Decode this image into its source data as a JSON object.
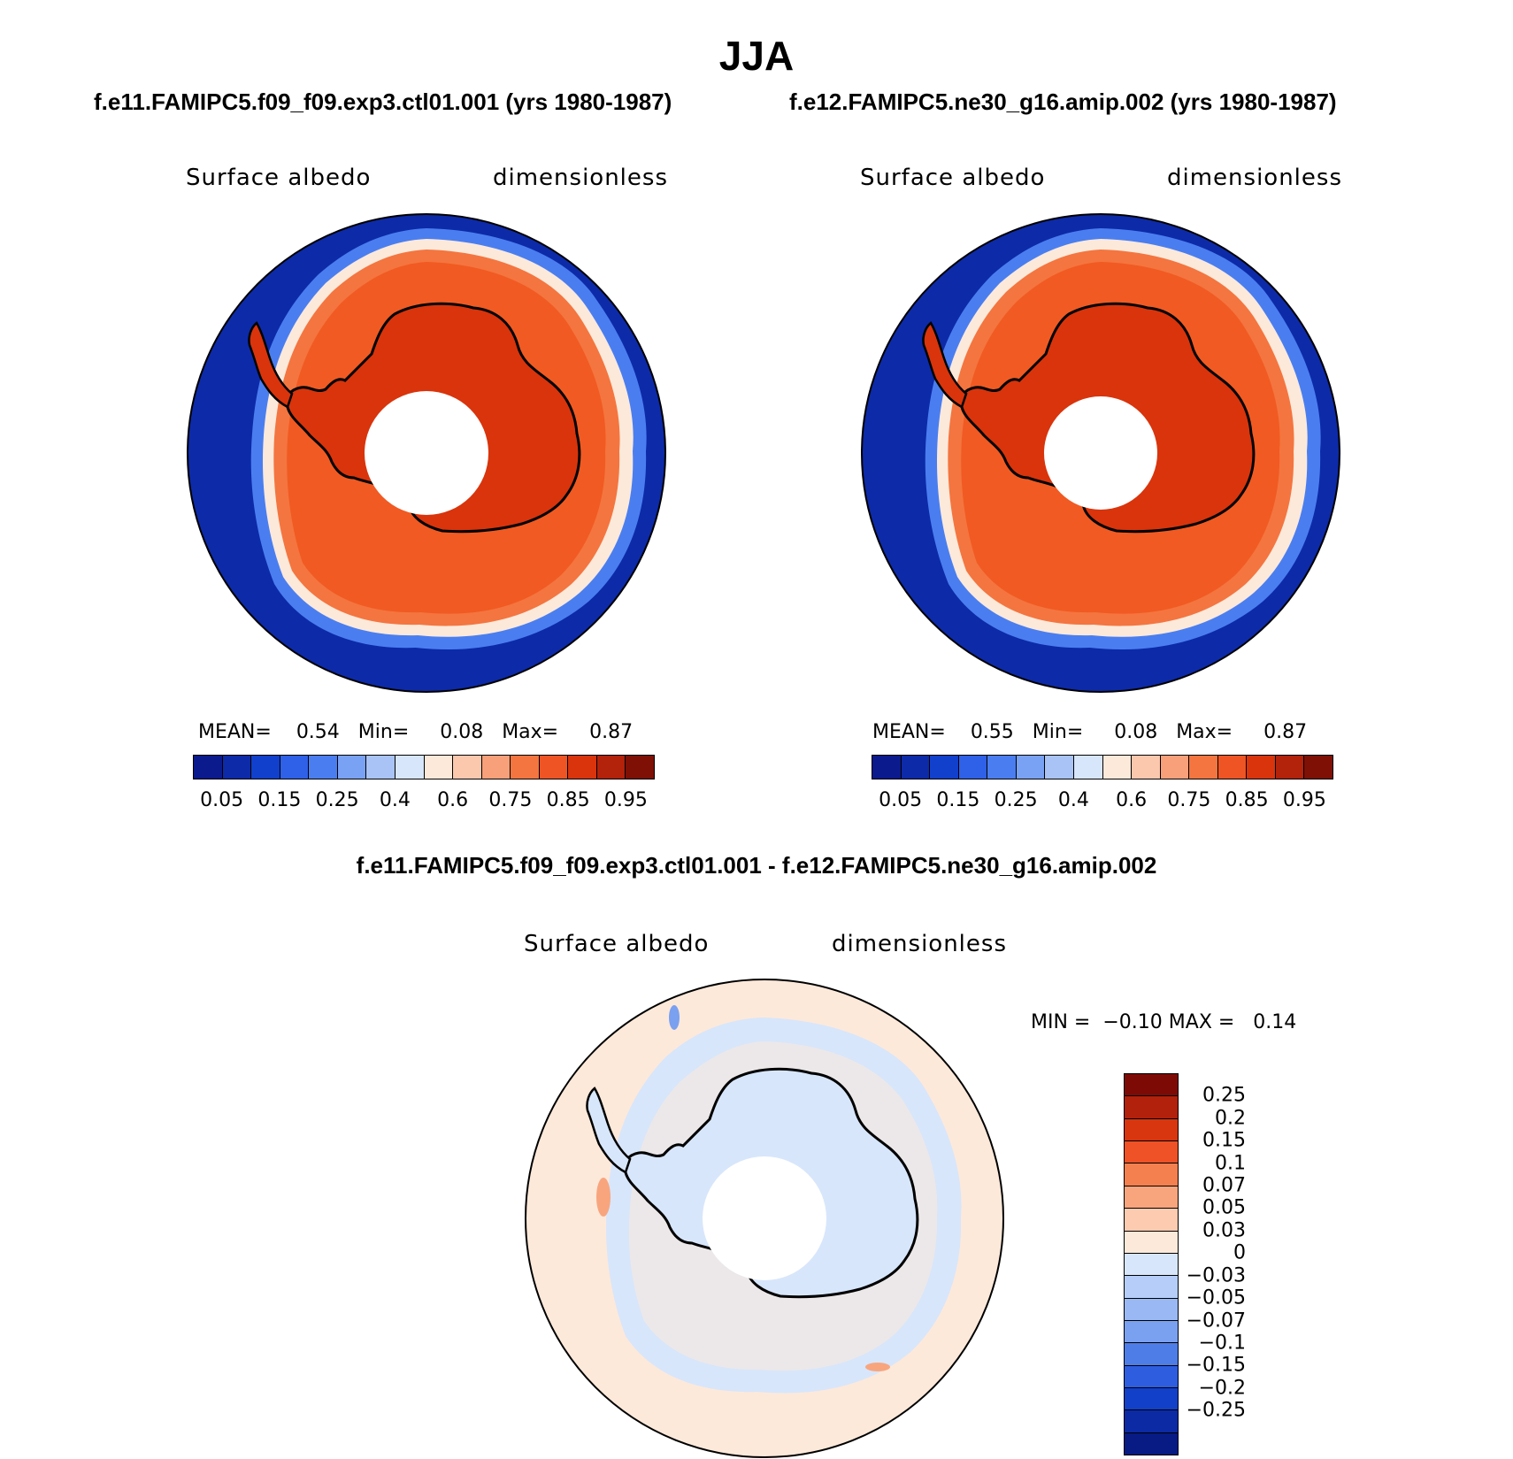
{
  "figure": {
    "title": "JJA",
    "left_case": "f.e11.FAMIPC5.f09_f09.exp3.ctl01.001 (yrs 1980-1987)",
    "right_case": "f.e12.FAMIPC5.ne30_g16.amip.002 (yrs 1980-1987)",
    "diff_case": "f.e11.FAMIPC5.f09_f09.exp3.ctl01.001 - f.e12.FAMIPC5.ne30_g16.amip.002"
  },
  "panels": {
    "left": {
      "variable": "Surface albedo",
      "units": "dimensionless",
      "mean_label": "MEAN=",
      "mean": "0.54",
      "min_label": "Min=",
      "min": "0.08",
      "max_label": "Max=",
      "max": "0.87"
    },
    "right": {
      "variable": "Surface albedo",
      "units": "dimensionless",
      "mean_label": "MEAN=",
      "mean": "0.55",
      "min_label": "Min=",
      "min": "0.08",
      "max_label": "Max=",
      "max": "0.87"
    },
    "diff": {
      "variable": "Surface albedo",
      "units": "dimensionless",
      "min_label": "MIN =",
      "min": "−0.10",
      "max_label": "MAX =",
      "max": "0.14"
    }
  },
  "colorbars": {
    "abs": {
      "colors": [
        "#0b1a8c",
        "#0d2aa8",
        "#1140cc",
        "#2f60e8",
        "#4a7ef0",
        "#7aa2f4",
        "#a9c3f6",
        "#d7e6fb",
        "#fde9da",
        "#fbc8ae",
        "#f7a07a",
        "#f4753f",
        "#ef5424",
        "#d9340c",
        "#b3220a",
        "#7e1006"
      ],
      "ticks": [
        "0.05",
        "0.15",
        "0.25",
        "0.4",
        "0.6",
        "0.75",
        "0.85",
        "0.95"
      ]
    },
    "diff": {
      "colors": [
        "#7e0a06",
        "#b1210c",
        "#d7360f",
        "#ee5226",
        "#f4804f",
        "#f8a57e",
        "#fccbb0",
        "#fde9da",
        "#d7e6fb",
        "#b5cdf8",
        "#9ab9f4",
        "#7aa0f0",
        "#4f7de8",
        "#2e5de0",
        "#1240c8",
        "#0b2aa4",
        "#081a84"
      ],
      "ticks": [
        "0.25",
        "0.2",
        "0.15",
        "0.1",
        "0.07",
        "0.05",
        "0.03",
        "0",
        "−0.03",
        "−0.05",
        "−0.07",
        "−0.1",
        "−0.15",
        "−0.2",
        "−0.25"
      ]
    }
  },
  "map_colors": {
    "ocean_low": "#0d2aa8",
    "ocean_mid": "#1d48d0",
    "ice_edge_blue": "#7aa2f4",
    "ice_edge_white": "#fde9da",
    "sea_ice": "#f15a22",
    "continent": "#d9340c",
    "diff_background": "#fde9da",
    "diff_neg": "#d7e6fb"
  }
}
